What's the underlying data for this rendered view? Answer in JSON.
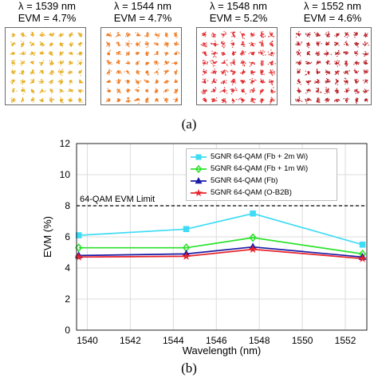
{
  "panels": [
    {
      "lambda": "λ = 1539 nm",
      "evm": "EVM = 4.7%",
      "color": "#e6ad1e",
      "spread": 0.17
    },
    {
      "lambda": "λ = 1544 nm",
      "evm": "EVM = 4.7%",
      "color": "#f07a22",
      "spread": 0.17
    },
    {
      "lambda": "λ = 1548 nm",
      "evm": "EVM = 5.2%",
      "color": "#e3262a",
      "spread": 0.21
    },
    {
      "lambda": "λ = 1552 nm",
      "evm": "EVM = 4.6%",
      "color": "#b71e24",
      "spread": 0.19
    }
  ],
  "captions": {
    "a": "(a)",
    "b": "(b)"
  },
  "chart_data": {
    "type": "line",
    "xlabel": "Wavelength (nm)",
    "ylabel": "EVM (%)",
    "xlim": [
      1539.5,
      1553
    ],
    "ylim": [
      0,
      12
    ],
    "xticks": [
      1540,
      1542,
      1544,
      1546,
      1548,
      1550,
      1552
    ],
    "yticks": [
      0,
      2,
      4,
      6,
      8,
      10,
      12
    ],
    "grid": true,
    "legend": "top-right",
    "x": [
      1539.6,
      1544.6,
      1547.7,
      1552.8
    ],
    "series": [
      {
        "name": "5GNR 64-QAM (Fb + 2m Wi)",
        "values": [
          6.1,
          6.5,
          7.5,
          5.5
        ],
        "color": "#3fdcf5",
        "marker": "square"
      },
      {
        "name": "5GNR 64-QAM (Fb + 1m Wi)",
        "values": [
          5.3,
          5.3,
          5.95,
          4.9
        ],
        "color": "#2be22b",
        "marker": "diamond"
      },
      {
        "name": "5GNR 64-QAM (Fb)",
        "values": [
          4.8,
          4.9,
          5.35,
          4.7
        ],
        "color": "#1a1aa8",
        "marker": "triangle"
      },
      {
        "name": "5GNR 64-QAM (O-B2B)",
        "values": [
          4.7,
          4.75,
          5.2,
          4.6
        ],
        "color": "#e8242c",
        "marker": "star"
      }
    ],
    "reference_line": {
      "value": 8,
      "label": "64-QAM EVM Limit"
    }
  }
}
